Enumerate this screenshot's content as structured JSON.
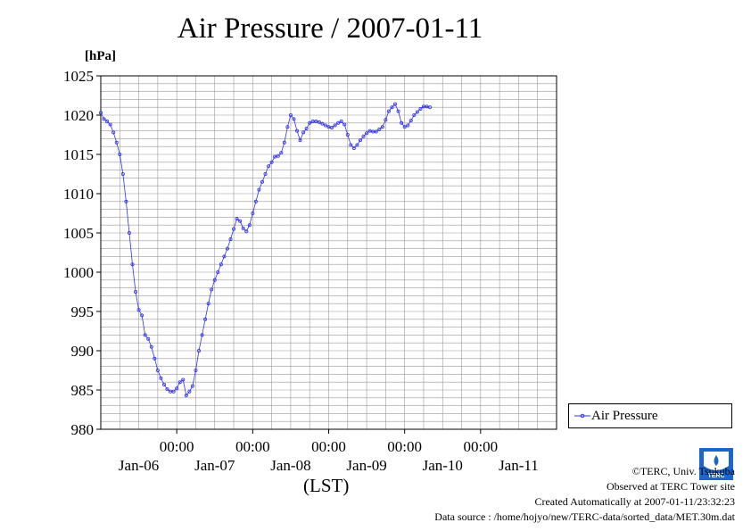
{
  "chart_data": {
    "type": "line",
    "title": "Air Pressure / 2007-01-11",
    "ylabel": "[hPa]",
    "xlabel": "(LST)",
    "ylim": [
      980,
      1025
    ],
    "yticks": [
      980,
      985,
      990,
      995,
      1000,
      1005,
      1010,
      1015,
      1020,
      1025
    ],
    "xlim": [
      0,
      144
    ],
    "xticks": [
      {
        "x": 24,
        "time": "00:00",
        "day": "Jan-06"
      },
      {
        "x": 48,
        "time": "00:00",
        "day": "Jan-07"
      },
      {
        "x": 72,
        "time": "00:00",
        "day": "Jan-08"
      },
      {
        "x": 96,
        "time": "00:00",
        "day": "Jan-09"
      },
      {
        "x": 120,
        "time": "00:00",
        "day": "Jan-10"
      },
      {
        "x": "",
        "time": "",
        "day": "Jan-11"
      }
    ],
    "grid": true,
    "legend_position": "right",
    "series": [
      {
        "name": "Air Pressure",
        "color": "#3333ee",
        "points": [
          [
            0,
            1020.3
          ],
          [
            1,
            1019.5
          ],
          [
            2,
            1019.2
          ],
          [
            3,
            1018.8
          ],
          [
            4,
            1017.8
          ],
          [
            5,
            1016.5
          ],
          [
            6,
            1015.0
          ],
          [
            7,
            1012.5
          ],
          [
            8,
            1009.0
          ],
          [
            9,
            1005.0
          ],
          [
            10,
            1001.0
          ],
          [
            11,
            997.5
          ],
          [
            12,
            995.2
          ],
          [
            13,
            994.5
          ],
          [
            14,
            992.0
          ],
          [
            15,
            991.5
          ],
          [
            16,
            990.5
          ],
          [
            17,
            989.0
          ],
          [
            18,
            987.5
          ],
          [
            19,
            986.5
          ],
          [
            20,
            985.7
          ],
          [
            21,
            985.1
          ],
          [
            22,
            984.8
          ],
          [
            23,
            984.8
          ],
          [
            24,
            985.2
          ],
          [
            25,
            986.0
          ],
          [
            26,
            986.3
          ],
          [
            27,
            984.3
          ],
          [
            28,
            984.8
          ],
          [
            29,
            985.5
          ],
          [
            30,
            987.5
          ],
          [
            31,
            990.0
          ],
          [
            32,
            992.0
          ],
          [
            33,
            994.0
          ],
          [
            34,
            996.0
          ],
          [
            35,
            997.8
          ],
          [
            36,
            999.0
          ],
          [
            37,
            1000.0
          ],
          [
            38,
            1001.0
          ],
          [
            39,
            1002.0
          ],
          [
            40,
            1003.0
          ],
          [
            41,
            1004.2
          ],
          [
            42,
            1005.5
          ],
          [
            43,
            1006.8
          ],
          [
            44,
            1006.5
          ],
          [
            45,
            1005.6
          ],
          [
            46,
            1005.2
          ],
          [
            47,
            1006.0
          ],
          [
            48,
            1007.5
          ],
          [
            49,
            1009.0
          ],
          [
            50,
            1010.5
          ],
          [
            51,
            1011.5
          ],
          [
            52,
            1012.5
          ],
          [
            53,
            1013.5
          ],
          [
            54,
            1014.0
          ],
          [
            55,
            1014.7
          ],
          [
            56,
            1014.8
          ],
          [
            57,
            1015.2
          ],
          [
            58,
            1016.5
          ],
          [
            59,
            1018.5
          ],
          [
            60,
            1020.0
          ],
          [
            61,
            1019.5
          ],
          [
            62,
            1018.0
          ],
          [
            63,
            1016.8
          ],
          [
            64,
            1017.8
          ],
          [
            65,
            1018.3
          ],
          [
            66,
            1019.0
          ],
          [
            67,
            1019.2
          ],
          [
            68,
            1019.2
          ],
          [
            69,
            1019.1
          ],
          [
            70,
            1018.9
          ],
          [
            71,
            1018.7
          ],
          [
            72,
            1018.5
          ],
          [
            73,
            1018.4
          ],
          [
            74,
            1018.7
          ],
          [
            75,
            1019.0
          ],
          [
            76,
            1019.2
          ],
          [
            77,
            1018.8
          ],
          [
            78,
            1017.5
          ],
          [
            79,
            1016.2
          ],
          [
            80,
            1015.8
          ],
          [
            81,
            1016.2
          ],
          [
            82,
            1016.8
          ],
          [
            83,
            1017.3
          ],
          [
            84,
            1017.7
          ],
          [
            85,
            1018.0
          ],
          [
            86,
            1017.9
          ],
          [
            87,
            1017.9
          ],
          [
            88,
            1018.2
          ],
          [
            89,
            1018.5
          ],
          [
            90,
            1019.4
          ],
          [
            91,
            1020.5
          ],
          [
            92,
            1021.0
          ],
          [
            93,
            1021.4
          ],
          [
            94,
            1020.5
          ],
          [
            95,
            1019.0
          ],
          [
            96,
            1018.5
          ],
          [
            97,
            1018.7
          ],
          [
            98,
            1019.3
          ],
          [
            99,
            1020.0
          ],
          [
            100,
            1020.4
          ],
          [
            101,
            1020.8
          ],
          [
            102,
            1021.1
          ],
          [
            103,
            1021.1
          ],
          [
            104,
            1021.0
          ]
        ]
      }
    ]
  },
  "credits": {
    "copyright": "©TERC, Univ. Tsukuba",
    "observed": "Observed at TERC Tower site",
    "created": "Created Automatically at 2007-01-11/23:32:23",
    "source": "Data source : /home/hojyo/new/TERC-data/sorted_data/MET.30m.dat"
  },
  "logo": {
    "text": "TERC",
    "color": "#1a66cc"
  }
}
